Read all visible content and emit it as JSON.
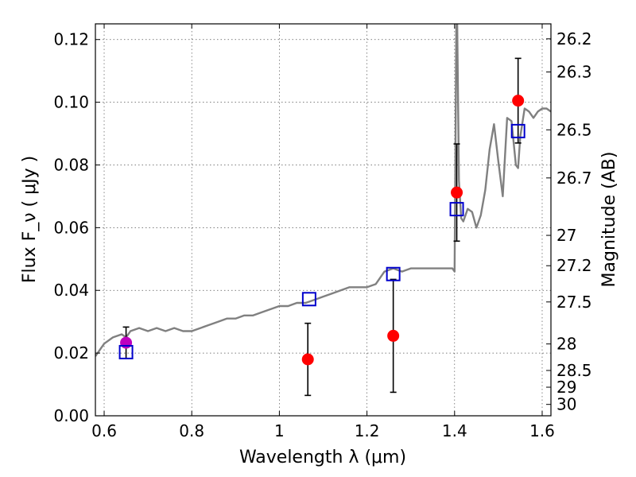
{
  "chart_data": {
    "type": "scatter",
    "title": "",
    "xlabel": "Wavelength  λ (μm)",
    "ylabel": "Flux  F_ν  ( μJy )",
    "ylabel_right": "Magnitude (AB)",
    "xlim": [
      0.58,
      1.62
    ],
    "ylim": [
      0.0,
      0.125
    ],
    "grid": true,
    "x_ticks": [
      0.6,
      0.8,
      1.0,
      1.2,
      1.4,
      1.6
    ],
    "x_tick_labels": [
      "0.6",
      "0.8",
      "1",
      "1.2",
      "1.4",
      "1.6"
    ],
    "y_ticks": [
      0.0,
      0.02,
      0.04,
      0.06,
      0.08,
      0.1,
      0.12
    ],
    "y_tick_labels": [
      "0.00",
      "0.02",
      "0.04",
      "0.06",
      "0.08",
      "0.10",
      "0.12"
    ],
    "right_ticks": [
      {
        "label": "26.2",
        "mag": 26.2
      },
      {
        "label": "26.3",
        "mag": 26.3
      },
      {
        "label": "26.5",
        "mag": 26.5
      },
      {
        "label": "26.7",
        "mag": 26.7
      },
      {
        "label": "27",
        "mag": 27.0
      },
      {
        "label": "27.2",
        "mag": 27.2
      },
      {
        "label": "27.5",
        "mag": 27.5
      },
      {
        "label": "28",
        "mag": 28.0
      },
      {
        "label": "28.5",
        "mag": 28.5
      },
      {
        "label": "29",
        "mag": 29.0
      },
      {
        "label": "30",
        "mag": 30.0
      }
    ],
    "series": [
      {
        "kind": "line",
        "color": "#808080",
        "x": [
          0.58,
          0.6,
          0.62,
          0.64,
          0.65,
          0.66,
          0.68,
          0.7,
          0.72,
          0.74,
          0.76,
          0.78,
          0.8,
          0.82,
          0.84,
          0.86,
          0.88,
          0.9,
          0.92,
          0.94,
          0.96,
          0.98,
          1.0,
          1.02,
          1.04,
          1.06,
          1.08,
          1.1,
          1.12,
          1.14,
          1.16,
          1.18,
          1.2,
          1.22,
          1.24,
          1.26,
          1.28,
          1.3,
          1.32,
          1.34,
          1.36,
          1.38,
          1.395,
          1.4,
          1.402,
          1.404,
          1.406,
          1.408,
          1.41,
          1.415,
          1.42,
          1.43,
          1.44,
          1.45,
          1.46,
          1.47,
          1.48,
          1.49,
          1.5,
          1.51,
          1.52,
          1.53,
          1.54,
          1.545,
          1.55,
          1.56,
          1.57,
          1.58,
          1.59,
          1.6,
          1.61,
          1.62
        ],
        "y": [
          0.019,
          0.023,
          0.025,
          0.026,
          0.025,
          0.027,
          0.028,
          0.027,
          0.028,
          0.027,
          0.028,
          0.027,
          0.027,
          0.028,
          0.029,
          0.03,
          0.031,
          0.031,
          0.032,
          0.032,
          0.033,
          0.034,
          0.035,
          0.035,
          0.036,
          0.036,
          0.037,
          0.038,
          0.039,
          0.04,
          0.041,
          0.041,
          0.041,
          0.042,
          0.046,
          0.047,
          0.046,
          0.047,
          0.047,
          0.047,
          0.047,
          0.047,
          0.047,
          0.046,
          0.085,
          0.125,
          0.125,
          0.1,
          0.075,
          0.063,
          0.062,
          0.066,
          0.065,
          0.06,
          0.064,
          0.072,
          0.085,
          0.093,
          0.081,
          0.07,
          0.095,
          0.094,
          0.08,
          0.079,
          0.089,
          0.098,
          0.097,
          0.095,
          0.097,
          0.098,
          0.098,
          0.097
        ]
      },
      {
        "kind": "marker",
        "marker": "circle",
        "color": "#ff0000",
        "x": [
          1.065,
          1.26,
          1.405,
          1.545
        ],
        "y": [
          0.018,
          0.0255,
          0.0712,
          0.1005
        ],
        "yerr_low": [
          0.0115,
          0.018,
          0.0155,
          0.0135
        ],
        "yerr_high": [
          0.0115,
          0.018,
          0.0155,
          0.0135
        ]
      },
      {
        "kind": "marker",
        "marker": "circle",
        "color": "#bf00bf",
        "x": [
          0.65
        ],
        "y": [
          0.0233
        ],
        "yerr_low": [
          0.005
        ],
        "yerr_high": [
          0.005
        ]
      },
      {
        "kind": "marker",
        "marker": "square",
        "color": "#0000cc",
        "x": [
          0.65,
          1.068,
          1.26,
          1.405,
          1.545
        ],
        "y": [
          0.0203,
          0.0372,
          0.0452,
          0.0659,
          0.0908
        ]
      }
    ]
  }
}
